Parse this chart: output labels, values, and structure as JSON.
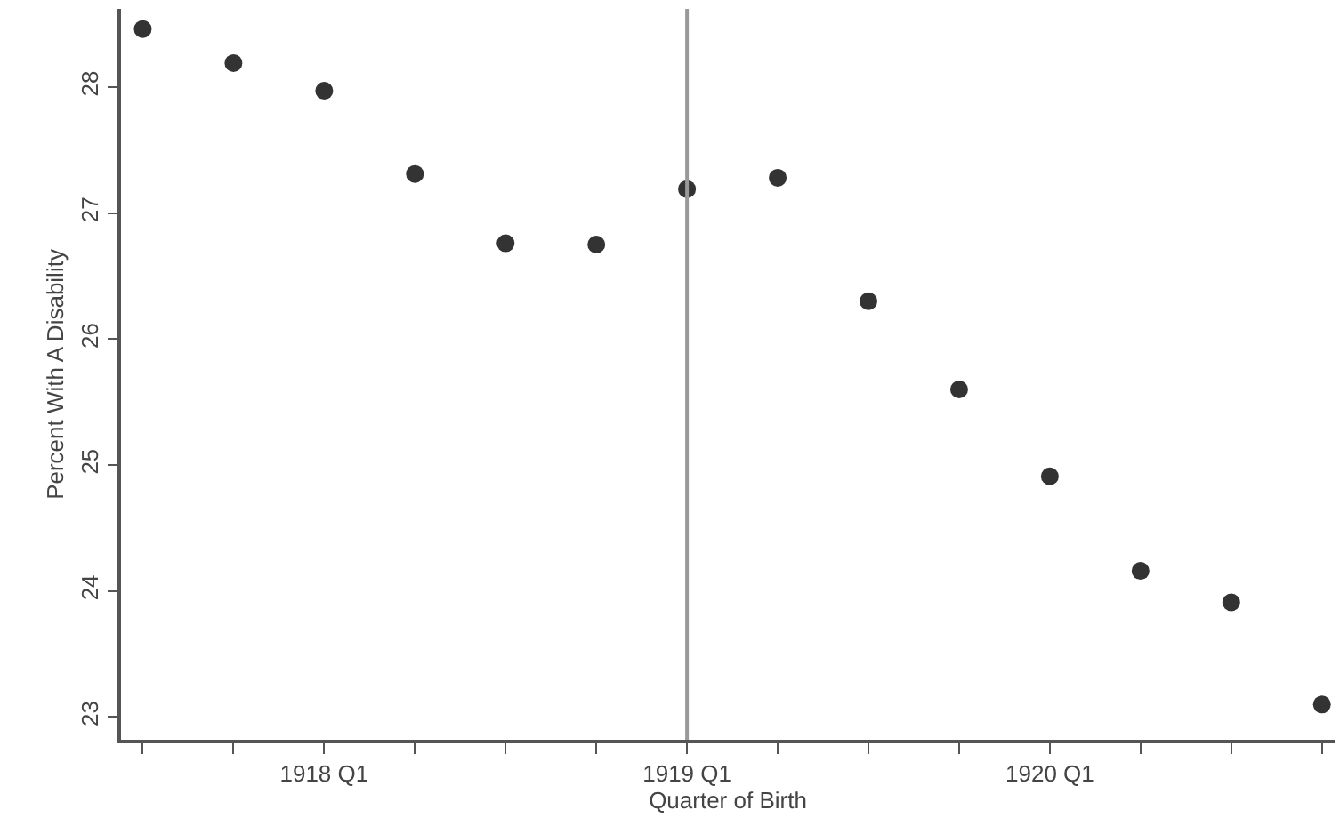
{
  "chart_data": {
    "type": "scatter",
    "xlabel": "Quarter of Birth",
    "ylabel": "Percent With A Disability",
    "categories": [
      null,
      null,
      "1918 Q1",
      null,
      null,
      null,
      "1919 Q1",
      null,
      null,
      null,
      "1920 Q1",
      null,
      null,
      null
    ],
    "series": [
      {
        "color": "#333333",
        "values": [
          28.46,
          28.19,
          27.97,
          27.31,
          26.76,
          26.75,
          27.19,
          27.28,
          26.3,
          25.6,
          24.91,
          24.16,
          23.91,
          23.1
        ]
      }
    ],
    "ylim": [
      22.82,
      28.62
    ],
    "yticks": [
      23,
      24,
      25,
      26,
      27,
      28
    ],
    "ref_lines": [
      {
        "axis": "x",
        "value": "1919 Q1",
        "color": "#999999"
      }
    ],
    "grid": false,
    "marker": "circle"
  }
}
